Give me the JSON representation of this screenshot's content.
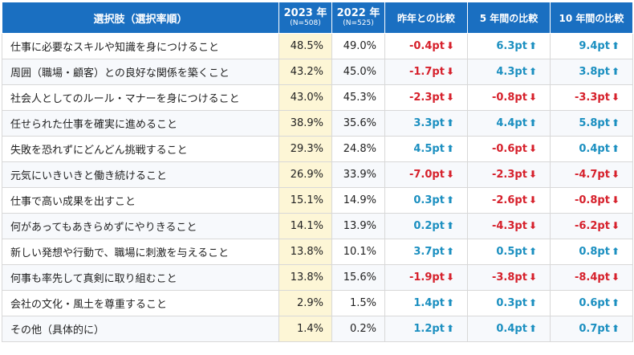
{
  "header": {
    "label": "選択肢（選択率順）",
    "y2023": "2023 年",
    "n2023": "(N=508)",
    "y2022": "2022 年",
    "n2022": "(N=525)",
    "cmp_last": "昨年との比較",
    "cmp_5y": "5 年間の比較",
    "cmp_10y": "10 年間の比較"
  },
  "colors": {
    "header_bg": "#1a6fc1",
    "up": "#1b8fc0",
    "down": "#d6202b",
    "highlight": "#fdf6d6"
  },
  "icons": {
    "up": "arrow-up-icon",
    "down": "arrow-down-icon"
  },
  "rows": [
    {
      "label": "仕事に必要なスキルや知識を身につけること",
      "v2023": "48.5%",
      "v2022": "49.0%",
      "c1": "-0.4pt",
      "d1": "down",
      "c5": "6.3pt",
      "d5": "up",
      "c10": "9.4pt",
      "d10": "up"
    },
    {
      "label": "周囲（職場・顧客）との良好な関係を築くこと",
      "v2023": "43.2%",
      "v2022": "45.0%",
      "c1": "-1.7pt",
      "d1": "down",
      "c5": "4.3pt",
      "d5": "up",
      "c10": "3.8pt",
      "d10": "up"
    },
    {
      "label": "社会人としてのルール・マナーを身につけること",
      "v2023": "43.0%",
      "v2022": "45.3%",
      "c1": "-2.3pt",
      "d1": "down",
      "c5": "-0.8pt",
      "d5": "down",
      "c10": "-3.3pt",
      "d10": "down"
    },
    {
      "label": "任せられた仕事を確実に進めること",
      "v2023": "38.9%",
      "v2022": "35.6%",
      "c1": "3.3pt",
      "d1": "up",
      "c5": "4.4pt",
      "d5": "up",
      "c10": "5.8pt",
      "d10": "up"
    },
    {
      "label": "失敗を恐れずにどんどん挑戦すること",
      "v2023": "29.3%",
      "v2022": "24.8%",
      "c1": "4.5pt",
      "d1": "up",
      "c5": "-0.6pt",
      "d5": "down",
      "c10": "0.4pt",
      "d10": "up"
    },
    {
      "label": "元気にいきいきと働き続けること",
      "v2023": "26.9%",
      "v2022": "33.9%",
      "c1": "-7.0pt",
      "d1": "down",
      "c5": "-2.3pt",
      "d5": "down",
      "c10": "-4.7pt",
      "d10": "down"
    },
    {
      "label": "仕事で高い成果を出すこと",
      "v2023": "15.1%",
      "v2022": "14.9%",
      "c1": "0.3pt",
      "d1": "up",
      "c5": "-2.6pt",
      "d5": "down",
      "c10": "-0.8pt",
      "d10": "down"
    },
    {
      "label": "何があってもあきらめずにやりきること",
      "v2023": "14.1%",
      "v2022": "13.9%",
      "c1": "0.2pt",
      "d1": "up",
      "c5": "-4.3pt",
      "d5": "down",
      "c10": "-6.2pt",
      "d10": "down"
    },
    {
      "label": "新しい発想や行動で、職場に刺激を与えること",
      "v2023": "13.8%",
      "v2022": "10.1%",
      "c1": "3.7pt",
      "d1": "up",
      "c5": "0.5pt",
      "d5": "up",
      "c10": "0.8pt",
      "d10": "up"
    },
    {
      "label": "何事も率先して真剣に取り組むこと",
      "v2023": "13.8%",
      "v2022": "15.6%",
      "c1": "-1.9pt",
      "d1": "down",
      "c5": "-3.8pt",
      "d5": "down",
      "c10": "-8.4pt",
      "d10": "down"
    },
    {
      "label": "会社の文化・風土を尊重すること",
      "v2023": "2.9%",
      "v2022": "1.5%",
      "c1": "1.4pt",
      "d1": "up",
      "c5": "0.3pt",
      "d5": "up",
      "c10": "0.6pt",
      "d10": "up"
    },
    {
      "label": "その他（具体的に）",
      "v2023": "1.4%",
      "v2022": "0.2%",
      "c1": "1.2pt",
      "d1": "up",
      "c5": "0.4pt",
      "d5": "up",
      "c10": "0.7pt",
      "d10": "up"
    }
  ]
}
